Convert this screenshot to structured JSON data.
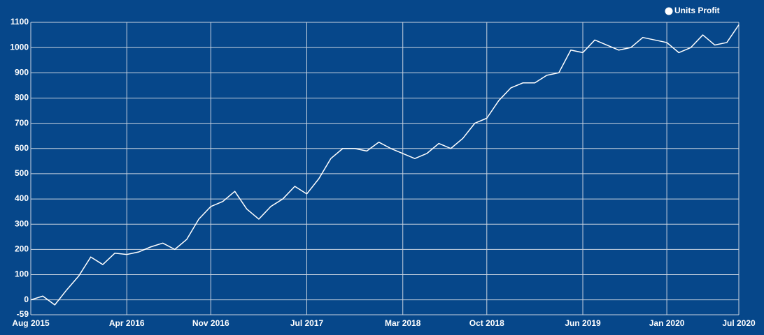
{
  "chart_data": {
    "type": "line",
    "categories": [
      "Aug 2015",
      null,
      null,
      null,
      null,
      null,
      null,
      null,
      "Apr 2016",
      null,
      null,
      null,
      null,
      null,
      null,
      "Nov 2016",
      null,
      null,
      null,
      null,
      null,
      null,
      null,
      "Jul 2017",
      null,
      null,
      null,
      null,
      null,
      null,
      null,
      "Mar 2018",
      null,
      null,
      null,
      null,
      null,
      null,
      "Oct 2018",
      null,
      null,
      null,
      null,
      null,
      null,
      null,
      "Jun 2019",
      null,
      null,
      null,
      null,
      null,
      null,
      "Jan 2020",
      null,
      null,
      null,
      null,
      null,
      "Jul 2020"
    ],
    "series": [
      {
        "name": "Units Profit",
        "color": "#ffffff",
        "values": [
          0,
          15,
          -20,
          40,
          95,
          170,
          140,
          185,
          180,
          190,
          210,
          225,
          200,
          240,
          320,
          370,
          390,
          430,
          360,
          320,
          370,
          400,
          450,
          420,
          480,
          560,
          600,
          600,
          590,
          625,
          600,
          580,
          560,
          580,
          620,
          600,
          640,
          700,
          720,
          790,
          840,
          860,
          860,
          890,
          900,
          990,
          980,
          1030,
          1010,
          990,
          1000,
          1040,
          1030,
          1020,
          980,
          1000,
          1050,
          1010,
          1020,
          1090
        ]
      }
    ],
    "ylim": [
      -59,
      1100
    ],
    "yticks": [
      -59,
      0,
      100,
      200,
      300,
      400,
      500,
      600,
      700,
      800,
      900,
      1000,
      1100
    ],
    "grid": true,
    "legend": "top-right"
  }
}
